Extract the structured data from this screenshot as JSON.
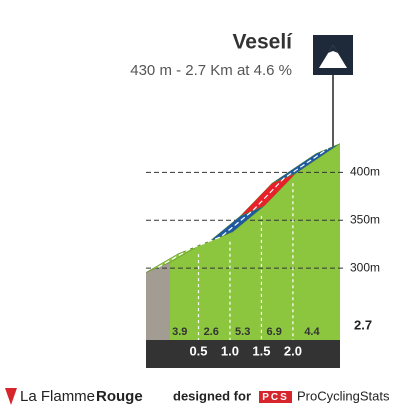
{
  "chart_data": {
    "type": "area",
    "title": "Veselí",
    "subtitle": "430 m - 2.7 Km at 4.6 %",
    "x": [
      0,
      0.5,
      1,
      1.5,
      2,
      2.7
    ],
    "values": [
      306,
      325,
      338,
      365,
      399,
      430
    ],
    "color": "#8cc63f",
    "segment_gradients": [
      3.9,
      2.6,
      5.3,
      6.9,
      4.4
    ],
    "segment_colors": [
      "#8cc63f",
      "#8cc63f",
      "#1f5aa0",
      "#e8202a",
      "#1f5aa0"
    ],
    "xlim": [
      0,
      2.7
    ],
    "xticks": [
      0.5,
      {
        "value": 1,
        "label": "1.0"
      },
      1.5,
      {
        "value": 2,
        "label": "2.0"
      },
      2.7
    ],
    "ylim": [
      225,
      440
    ],
    "yticks": [
      {
        "value": 300,
        "label": "300m"
      },
      {
        "value": 350,
        "label": "350m"
      },
      {
        "value": 400,
        "label": "400m"
      }
    ],
    "grid": true
  },
  "footer": {
    "brand": "La Flamme",
    "brand_bold": "Rouge",
    "designed_for": "designed for",
    "pcs_logo": "PCS",
    "pcs_name": "ProCyclingStats"
  }
}
